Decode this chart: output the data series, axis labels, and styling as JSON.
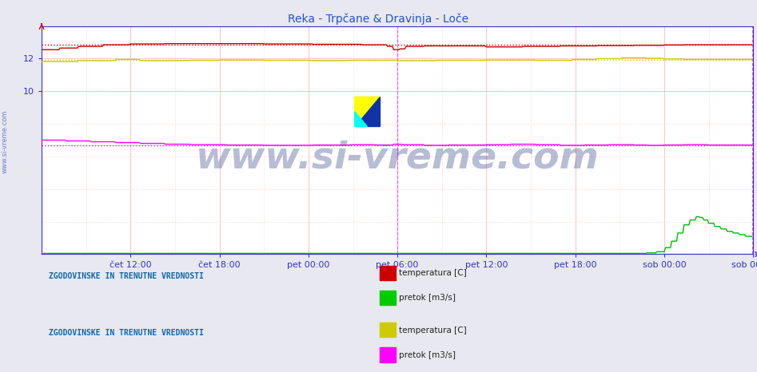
{
  "title": "Reka - Trpčane & Dravinja - Loče",
  "title_color": "#2255cc",
  "title_fontsize": 10,
  "bg_color": "#e8e8f0",
  "plot_bg_color": "#ffffff",
  "xlim": [
    0,
    576
  ],
  "ylim_min": 0,
  "ylim_max": 14.0,
  "ytick_vals": [
    10,
    12
  ],
  "ytick_labels": [
    "10",
    "12"
  ],
  "xtick_labels": [
    "čet 12:00",
    "čet 18:00",
    "pet 00:00",
    "pet 06:00",
    "pet 12:00",
    "pet 18:00",
    "sob 00:00",
    "sob 06:00"
  ],
  "xtick_positions": [
    72,
    144,
    216,
    288,
    360,
    432,
    504,
    576
  ],
  "grid_color_major": "#ffbbbb",
  "grid_color_minor": "#ffdddd",
  "vline_color": "#ff44ff",
  "vline_right_color": "#ff44ff",
  "watermark": "www.si-vreme.com",
  "watermark_color": "#334488",
  "watermark_alpha": 0.35,
  "watermark_fontsize": 34,
  "axis_color": "#3333cc",
  "tick_color": "#3355bb",
  "tick_fontsize": 8,
  "sidebar_text": "www.si-vreme.com",
  "sidebar_color": "#3355bb",
  "sidebar_fontsize": 6,
  "legend1_title": "ZGODOVINSKE IN TRENUTNE VREDNOSTI",
  "legend1_items": [
    {
      "label": "temperatura [C]",
      "color": "#cc0000"
    },
    {
      "label": "pretok [m3/s]",
      "color": "#00cc00"
    }
  ],
  "legend2_title": "ZGODOVINSKE IN TRENUTNE VREDNOSTI",
  "legend2_items": [
    {
      "label": "temperatura [C]",
      "color": "#cccc00"
    },
    {
      "label": "pretok [m3/s]",
      "color": "#ff00ff"
    }
  ],
  "reka_temp_color": "#cc0000",
  "reka_temp_ref": 12.85,
  "reka_pretok_color": "#00bb00",
  "reka_pretok_ref": 0.02,
  "dravinja_temp_color": "#cccc00",
  "dravinja_temp_ref": 11.9,
  "dravinja_pretok_color": "#ff00ff",
  "dravinja_pretok_ref": 6.7,
  "N": 576
}
